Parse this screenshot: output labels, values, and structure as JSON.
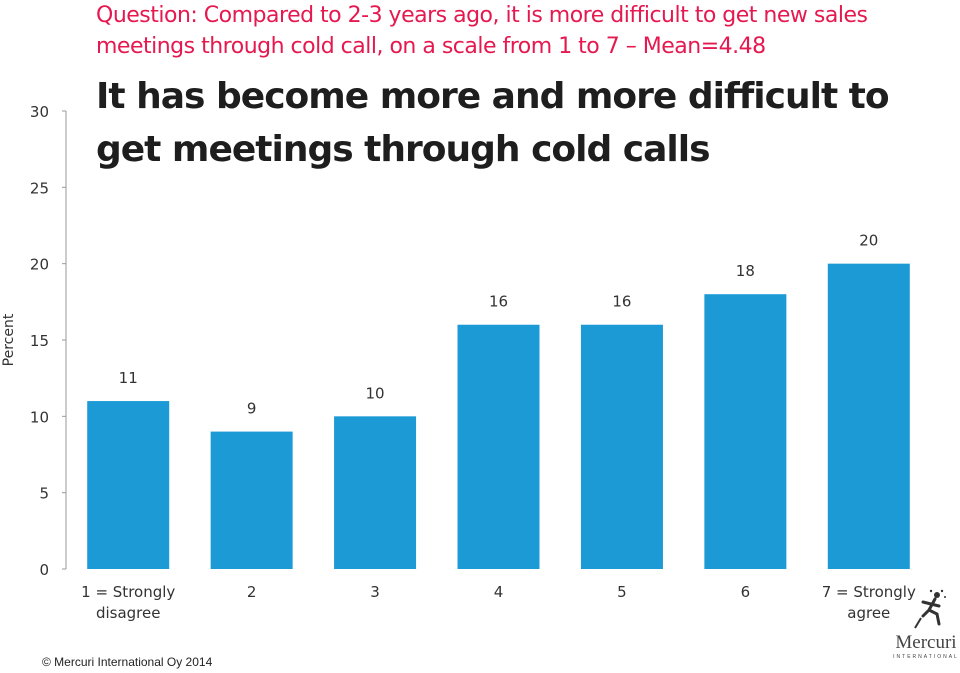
{
  "slide": {
    "question": "Question: Compared to 2-3 years ago, it is more difficult to get new sales meetings through cold call, on a scale from 1 to 7 – Mean=4.48",
    "headline": "It has become more and more difficult to get meetings through cold calls",
    "footer": "© Mercuri International Oy 2014",
    "logo_text": "Mercuri",
    "logo_subtext": "INTERNATIONAL"
  },
  "chart_data": {
    "type": "bar",
    "categories": [
      [
        "1 = Strongly",
        "disagree"
      ],
      [
        "2"
      ],
      [
        "3"
      ],
      [
        "4"
      ],
      [
        "5"
      ],
      [
        "6"
      ],
      [
        "7 = Strongly",
        "agree"
      ]
    ],
    "values": [
      11,
      9,
      10,
      16,
      16,
      18,
      20
    ],
    "ylabel": "Percent",
    "ylim": [
      0,
      30
    ],
    "yticks": [
      0,
      5,
      10,
      15,
      20,
      25,
      30
    ],
    "grid": false,
    "data_labels": true,
    "bar_color": "#1b9ad6",
    "text_color": "#333333",
    "question_color": "#e5194f"
  }
}
